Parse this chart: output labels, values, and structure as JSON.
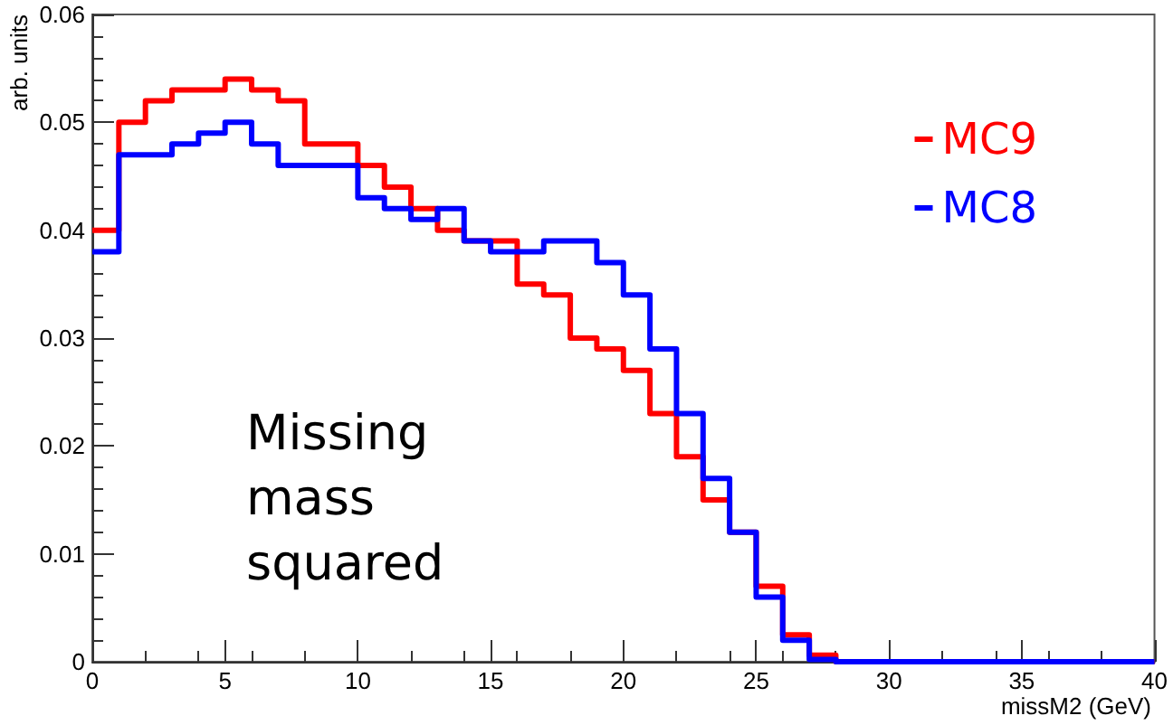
{
  "chart_data": {
    "type": "histogram",
    "xlabel": "missM2 (GeV)",
    "ylabel": "arb. units",
    "bins": [
      0,
      1,
      2,
      3,
      4,
      5,
      6,
      7,
      8,
      9,
      10,
      11,
      12,
      13,
      14,
      15,
      16,
      17,
      18,
      19,
      20,
      21,
      22,
      23,
      24,
      25,
      26,
      27,
      28,
      29,
      30,
      31,
      32,
      33,
      34,
      35,
      36,
      37,
      38,
      39,
      40
    ],
    "series": [
      {
        "name": "MC9",
        "color": "#ff0000",
        "values": [
          0.04,
          0.05,
          0.052,
          0.053,
          0.053,
          0.054,
          0.053,
          0.052,
          0.048,
          0.048,
          0.046,
          0.044,
          0.042,
          0.04,
          0.039,
          0.039,
          0.035,
          0.034,
          0.03,
          0.029,
          0.027,
          0.023,
          0.019,
          0.015,
          0.012,
          0.007,
          0.0025,
          0.0006,
          0,
          0,
          0,
          0,
          0,
          0,
          0,
          0,
          0,
          0,
          0,
          0
        ]
      },
      {
        "name": "MC8",
        "color": "#0000ff",
        "values": [
          0.038,
          0.047,
          0.047,
          0.048,
          0.049,
          0.05,
          0.048,
          0.046,
          0.046,
          0.046,
          0.043,
          0.042,
          0.041,
          0.042,
          0.039,
          0.038,
          0.038,
          0.039,
          0.039,
          0.037,
          0.034,
          0.029,
          0.023,
          0.017,
          0.012,
          0.006,
          0.002,
          0.0002,
          0,
          0,
          0,
          0,
          0,
          0,
          0,
          0,
          0,
          0,
          0,
          0
        ]
      }
    ],
    "xlim": [
      0,
      40
    ],
    "xticks": [
      0,
      5,
      10,
      15,
      20,
      25,
      30,
      35,
      40
    ],
    "ylim": [
      0,
      0.06
    ],
    "yticks": [
      0,
      0.01,
      0.02,
      0.03,
      0.04,
      0.05,
      0.06
    ],
    "legend": "top right",
    "grid": false,
    "annotations": [
      "Missing mass squared"
    ]
  }
}
